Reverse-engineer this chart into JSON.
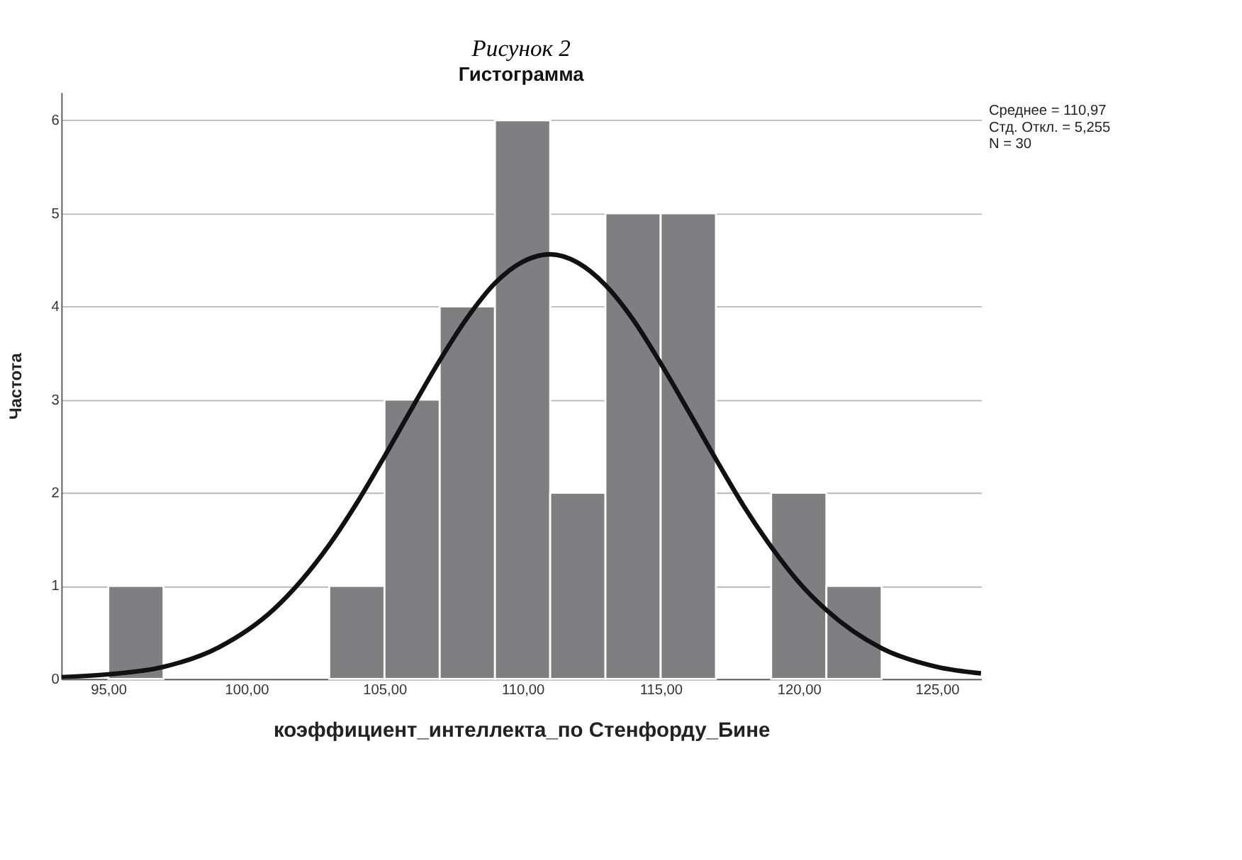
{
  "chart_data": {
    "type": "histogram",
    "title": "Рисунок 2",
    "subtitle": "Гистограмма",
    "xlabel": "коэффициент_интеллекта_по Стенфорду_Бине",
    "ylabel": "Частота",
    "bins": [
      95,
      97,
      99,
      101,
      103,
      105,
      107,
      109,
      111,
      113,
      115,
      117,
      119,
      121,
      123
    ],
    "values": [
      1,
      0,
      0,
      0,
      1,
      3,
      4,
      6,
      2,
      5,
      5,
      0,
      2,
      1
    ],
    "color": "#7f7f82",
    "series": [
      {
        "type": "line",
        "color": "#111111",
        "x": [
          93.3,
          95,
          97,
          99,
          101,
          102,
          103,
          104,
          105,
          106,
          107,
          108,
          109,
          110,
          111,
          112,
          113,
          114,
          115,
          116,
          117,
          118,
          119,
          120,
          121,
          123,
          125,
          126.6
        ],
        "values": [
          0.02,
          0.05,
          0.13,
          0.34,
          0.75,
          1.06,
          1.44,
          1.89,
          2.39,
          2.91,
          3.42,
          3.88,
          4.25,
          4.48,
          4.56,
          4.47,
          4.23,
          3.86,
          3.39,
          2.88,
          2.36,
          1.86,
          1.42,
          1.04,
          0.74,
          0.33,
          0.13,
          0.06
        ]
      }
    ],
    "xlim": [
      93.3,
      126.6
    ],
    "xticks": [
      {
        "value": 95,
        "label": "95,00"
      },
      {
        "value": 100,
        "label": "100,00"
      },
      {
        "value": 105,
        "label": "105,00"
      },
      {
        "value": 110,
        "label": "110,00"
      },
      {
        "value": 115,
        "label": "115,00"
      },
      {
        "value": 120,
        "label": "120,00"
      },
      {
        "value": 125,
        "label": "125,00"
      }
    ],
    "ylim": [
      0,
      6.3
    ],
    "yticks": [
      0,
      1,
      2,
      3,
      4,
      5,
      6
    ],
    "grid": "y",
    "annotations": [
      "Среднее = 110,97",
      "Стд. Откл. = 5,255",
      "N = 30"
    ]
  }
}
